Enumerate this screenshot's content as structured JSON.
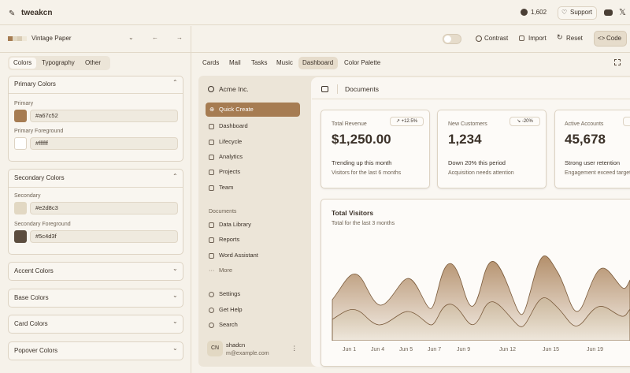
{
  "header": {
    "brand": "tweakcn",
    "github_stars": "1,602",
    "support": "Support"
  },
  "toolbar": {
    "theme": "Vintage Paper",
    "contrast": "Contrast",
    "import": "Import",
    "reset": "Reset",
    "code": "Code"
  },
  "editor": {
    "tabs": [
      "Colors",
      "Typography",
      "Other"
    ],
    "sections": [
      {
        "title": "Primary Colors",
        "items": [
          {
            "label": "Primary",
            "value": "#a67c52"
          },
          {
            "label": "Primary Foreground",
            "value": "#ffffff"
          }
        ]
      },
      {
        "title": "Secondary Colors",
        "items": [
          {
            "label": "Secondary",
            "value": "#e2d8c3"
          },
          {
            "label": "Secondary Foreground",
            "value": "#5c4d3f"
          }
        ]
      }
    ],
    "collapsed": [
      "Accent Colors",
      "Base Colors",
      "Card Colors",
      "Popover Colors"
    ]
  },
  "preview": {
    "tabs": [
      "Cards",
      "Mail",
      "Tasks",
      "Music",
      "Dashboard",
      "Color Palette"
    ],
    "sidebar": {
      "company": "Acme Inc.",
      "quick_create": "Quick Create",
      "nav": [
        "Dashboard",
        "Lifecycle",
        "Analytics",
        "Projects",
        "Team"
      ],
      "documents_heading": "Documents",
      "documents": [
        "Data Library",
        "Reports",
        "Word Assistant",
        "More"
      ],
      "footer": [
        "Settings",
        "Get Help",
        "Search"
      ],
      "user": {
        "avatar": "CN",
        "name": "shadcn",
        "email": "m@example.com"
      }
    },
    "header": "Documents",
    "cards": [
      {
        "title": "Total Revenue",
        "badge": "+12.5%",
        "value": "$1,250.00",
        "note": "Trending up this month",
        "sub": "Visitors for the last 6 months"
      },
      {
        "title": "New Customers",
        "badge": "-20%",
        "value": "1,234",
        "note": "Down 20% this period",
        "sub": "Acquisition needs attention"
      },
      {
        "title": "Active Accounts",
        "value": "45,678",
        "note": "Strong user retention",
        "sub": "Engagement exceed targets"
      }
    ],
    "chart": {
      "title": "Total Visitors",
      "subtitle": "Total for the last 3 months",
      "x": [
        "Jun 1",
        "Jun 4",
        "Jun 5",
        "Jun 7",
        "Jun 9",
        "Jun 12",
        "Jun 15",
        "Jun 19"
      ]
    }
  }
}
